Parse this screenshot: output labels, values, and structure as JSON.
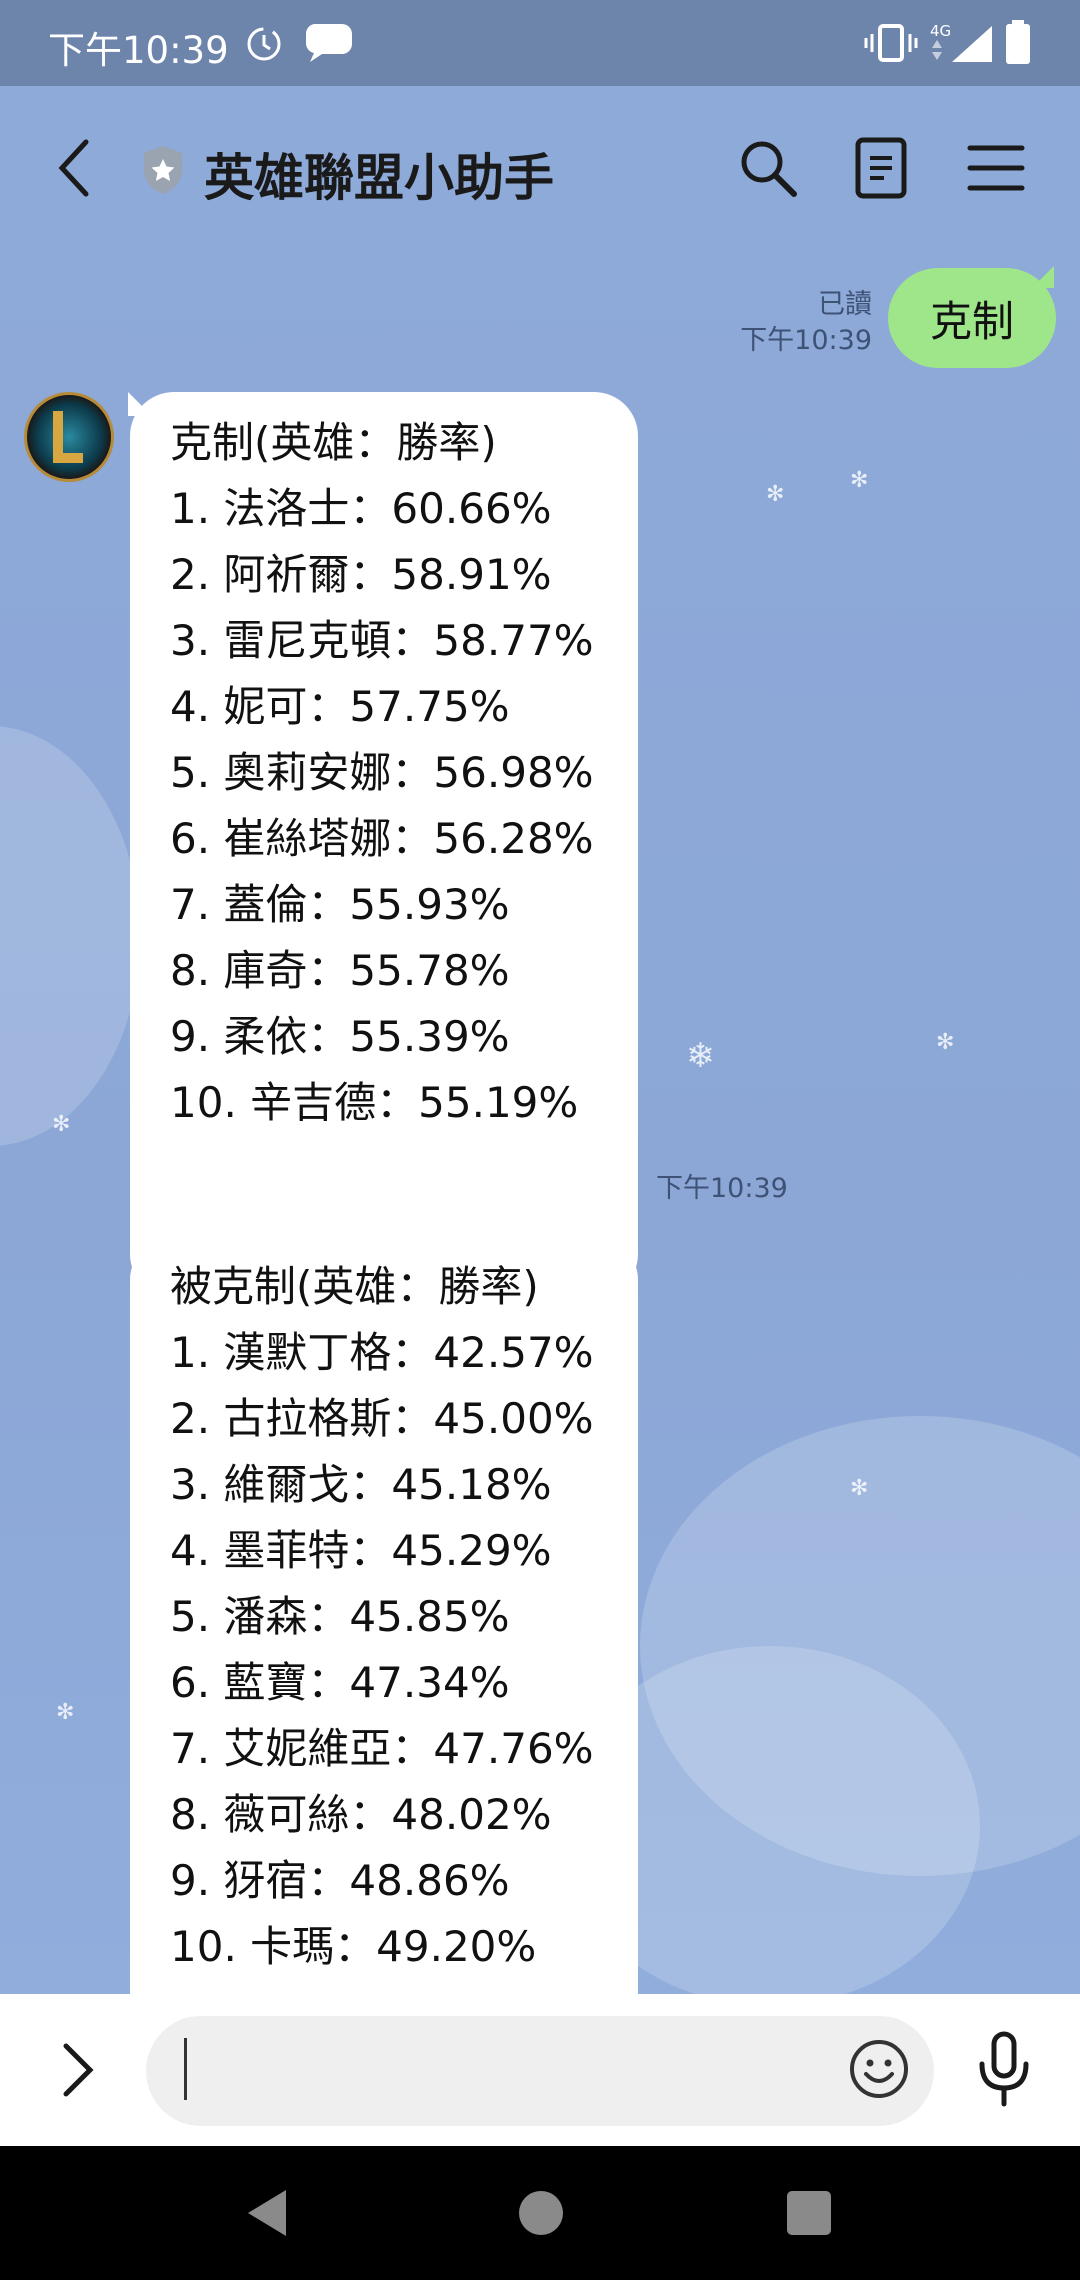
{
  "status_bar": {
    "time": "下午10:39",
    "network": "4G"
  },
  "header": {
    "title": "英雄聯盟小助手",
    "back_icon": "chevron-left-icon",
    "official_badge_icon": "shield-star-icon",
    "search_icon": "search-icon",
    "notes_icon": "notes-icon",
    "menu_icon": "hamburger-menu-icon"
  },
  "messages": {
    "sent": {
      "text": "克制",
      "read_label": "已讀",
      "time": "下午10:39"
    },
    "counters": {
      "lines": [
        "克制(英雄：勝率)",
        "1. 法洛士：60.66%",
        "2. 阿祈爾：58.91%",
        "3. 雷尼克頓：58.77%",
        "4. 妮可：57.75%",
        "5. 奧莉安娜：56.98%",
        "6. 崔絲塔娜：56.28%",
        "7. 蓋倫：55.93%",
        "8. 庫奇：55.78%",
        "9. 柔依：55.39%",
        "10. 辛吉德：55.19%"
      ],
      "time": "下午10:39"
    },
    "countered_by": {
      "lines": [
        "被克制(英雄：勝率)",
        "1. 漢默丁格：42.57%",
        "2. 古拉格斯：45.00%",
        "3. 維爾戈：45.18%",
        "4. 墨菲特：45.29%",
        "5. 潘森：45.85%",
        "6. 藍寶：47.34%",
        "7. 艾妮維亞：47.76%",
        "8. 薇可絲：48.02%",
        "9. 犽宿：48.86%",
        "10. 卡瑪：49.20%"
      ]
    }
  },
  "input_bar": {
    "placeholder": "",
    "expand_icon": "chevron-right-icon",
    "emoji_icon": "smiley-icon",
    "mic_icon": "microphone-icon"
  },
  "colors": {
    "chat_background": "#8fa9d8",
    "status_bar": "#6e85ab",
    "sent_bubble": "#9fe58a",
    "received_bubble": "#ffffff"
  }
}
